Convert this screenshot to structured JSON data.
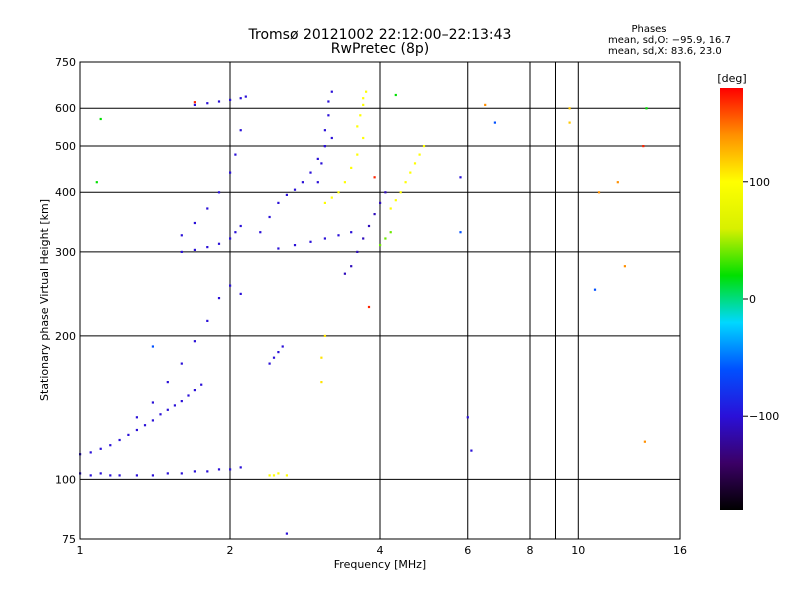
{
  "chart_data": {
    "type": "scatter",
    "title": "Tromsø 20121002 22:12:00–22:13:43",
    "subtitle": "RwPretec (8p)",
    "xlabel": "Frequency [MHz]",
    "ylabel": "Stationary phase Virtual Height [km]",
    "x_scale": "log",
    "y_scale": "log",
    "xlim": [
      1,
      16
    ],
    "ylim": [
      75,
      750
    ],
    "x_ticks": [
      1,
      2,
      4,
      6,
      8,
      10,
      16
    ],
    "x_tick_labels": [
      "1",
      "2",
      "4",
      "6",
      "8",
      "10",
      "16"
    ],
    "y_ticks": [
      75,
      100,
      200,
      300,
      400,
      500,
      600,
      750
    ],
    "y_tick_labels": [
      "75",
      "100",
      "200",
      "300",
      "400",
      "500",
      "600",
      "750"
    ],
    "grid": true,
    "stats": {
      "heading": "Phases",
      "line_o": "mean, sd,O: −95.9, 16.7",
      "line_x": "mean, sd,X:  83.6, 23.0"
    },
    "colorbar": {
      "label": "[deg]",
      "range": [
        -180,
        180
      ],
      "ticks": [
        100,
        0,
        -100
      ],
      "tick_labels": [
        "100",
        "0",
        "−100"
      ],
      "colors": [
        "#000000",
        "#3b0066",
        "#2a10d8",
        "#0050ff",
        "#00d8ff",
        "#00e000",
        "#d8f000",
        "#ffff00",
        "#ff9000",
        "#ff0000"
      ]
    },
    "series": [
      {
        "phase": -100,
        "x": [
          1.0,
          1.05,
          1.1,
          1.15,
          1.2,
          1.3,
          1.4,
          1.5,
          1.6,
          1.7,
          1.8,
          1.9,
          2.0,
          2.1
        ],
        "y": [
          103,
          102,
          103,
          102,
          102,
          102,
          102,
          103,
          103,
          104,
          104,
          105,
          105,
          106
        ]
      },
      {
        "phase": -100,
        "x": [
          1.0,
          1.05,
          1.1,
          1.15,
          1.2,
          1.25,
          1.3,
          1.35,
          1.4,
          1.45,
          1.5,
          1.55,
          1.6,
          1.65,
          1.7,
          1.75
        ],
        "y": [
          113,
          114,
          116,
          118,
          121,
          124,
          127,
          130,
          133,
          137,
          140,
          143,
          146,
          150,
          154,
          158
        ]
      },
      {
        "phase": -100,
        "x": [
          1.3,
          1.4,
          1.5,
          1.6,
          1.7,
          1.8,
          1.9,
          2.0,
          2.1
        ],
        "y": [
          135,
          145,
          160,
          175,
          195,
          215,
          240,
          255,
          245
        ]
      },
      {
        "phase": -100,
        "x": [
          1.6,
          1.7,
          1.8,
          1.9,
          2.0,
          2.05,
          2.1
        ],
        "y": [
          300,
          303,
          307,
          312,
          320,
          330,
          340
        ]
      },
      {
        "phase": -100,
        "x": [
          1.6,
          1.7,
          1.8,
          1.9,
          2.0,
          2.05,
          2.1
        ],
        "y": [
          325,
          345,
          370,
          400,
          440,
          480,
          540
        ]
      },
      {
        "phase": -100,
        "x": [
          1.7,
          1.8,
          1.9,
          2.0,
          2.1,
          2.15
        ],
        "y": [
          610,
          615,
          620,
          625,
          630,
          635
        ]
      },
      {
        "phase": -100,
        "x": [
          2.3,
          2.4,
          2.5,
          2.6,
          2.7,
          2.8,
          2.9,
          3.0,
          3.1,
          3.2
        ],
        "y": [
          330,
          355,
          380,
          395,
          405,
          420,
          440,
          470,
          500,
          520
        ]
      },
      {
        "phase": -100,
        "x": [
          2.5,
          2.7,
          2.9,
          3.1,
          3.3,
          3.5
        ],
        "y": [
          305,
          310,
          315,
          320,
          325,
          330
        ]
      },
      {
        "phase": -100,
        "x": [
          3.0,
          3.05,
          3.1,
          3.1,
          3.15,
          3.15,
          3.2
        ],
        "y": [
          420,
          460,
          500,
          540,
          580,
          620,
          650
        ]
      },
      {
        "phase": -110,
        "x": [
          3.4,
          3.5,
          3.6,
          3.7,
          3.8,
          3.9,
          4.0,
          4.1
        ],
        "y": [
          270,
          280,
          300,
          320,
          340,
          360,
          380,
          400
        ]
      },
      {
        "phase": -100,
        "x": [
          2.4,
          2.45,
          2.5,
          2.55
        ],
        "y": [
          175,
          180,
          185,
          190
        ]
      },
      {
        "phase": 100,
        "x": [
          3.1,
          3.2,
          3.3,
          3.4,
          3.5,
          3.6,
          3.7
        ],
        "y": [
          380,
          390,
          400,
          420,
          450,
          480,
          520
        ]
      },
      {
        "phase": 100,
        "x": [
          3.6,
          3.65,
          3.7,
          3.7,
          3.75
        ],
        "y": [
          550,
          580,
          610,
          630,
          650
        ]
      },
      {
        "phase": 100,
        "x": [
          4.2,
          4.3,
          4.4,
          4.5,
          4.6,
          4.7,
          4.8,
          4.9
        ],
        "y": [
          370,
          385,
          400,
          420,
          440,
          460,
          480,
          500
        ]
      },
      {
        "phase": 100,
        "x": [
          2.4,
          2.45,
          2.5,
          2.6
        ],
        "y": [
          102,
          102,
          103,
          102
        ]
      },
      {
        "phase": 40,
        "x": [
          4.0,
          4.1,
          4.2
        ],
        "y": [
          310,
          320,
          330
        ]
      },
      {
        "phase": 110,
        "x": [
          3.05,
          3.05,
          3.1
        ],
        "y": [
          160,
          180,
          200
        ]
      },
      {
        "phase": 120,
        "x": [
          9.6,
          9.6
        ],
        "y": [
          560,
          600
        ]
      },
      {
        "phase": 140,
        "x": [
          6.5,
          11.0,
          12.0,
          12.4,
          13.6
        ],
        "y": [
          610,
          400,
          420,
          280,
          120
        ]
      },
      {
        "phase": 170,
        "x": [
          1.7,
          3.9,
          13.5,
          3.8
        ],
        "y": [
          618,
          430,
          500,
          230
        ]
      },
      {
        "phase": 20,
        "x": [
          1.1,
          1.08,
          13.7,
          4.3
        ],
        "y": [
          570,
          420,
          600,
          640
        ]
      },
      {
        "phase": -60,
        "x": [
          5.8,
          6.8,
          10.8,
          1.4
        ],
        "y": [
          330,
          560,
          250,
          190
        ]
      },
      {
        "phase": -100,
        "x": [
          2.6,
          5.8,
          6.0,
          6.1
        ],
        "y": [
          77,
          430,
          135,
          115
        ]
      }
    ]
  }
}
